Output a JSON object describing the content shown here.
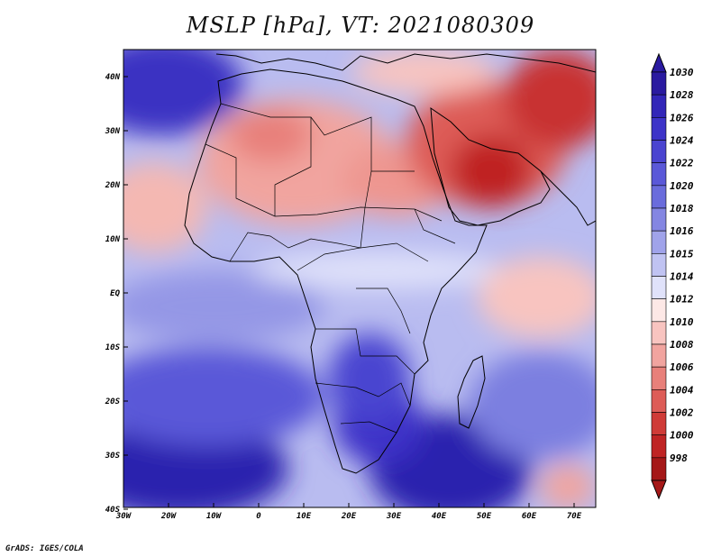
{
  "title": "MSLP [hPa], VT: 2021080309",
  "credit": "GrADS: IGES/COLA",
  "axes": {
    "lon_ticks": [
      "30W",
      "20W",
      "10W",
      "0",
      "10E",
      "20E",
      "30E",
      "40E",
      "50E",
      "60E",
      "70E"
    ],
    "lat_ticks": [
      "40N",
      "30N",
      "20N",
      "10N",
      "EQ",
      "10S",
      "20S",
      "30S",
      "40S"
    ]
  },
  "colorbar": {
    "labels": [
      "1030",
      "1028",
      "1026",
      "1024",
      "1022",
      "1020",
      "1018",
      "1016",
      "1015",
      "1014",
      "1012",
      "1010",
      "1008",
      "1006",
      "1004",
      "1002",
      "1000",
      "998"
    ],
    "colors": [
      "#2a1aa0",
      "#3226b8",
      "#3d33c8",
      "#4a44d0",
      "#5a58d8",
      "#6a6cdc",
      "#8486e2",
      "#a0a3ea",
      "#c0c3f2",
      "#e0e2fa",
      "#fde8e6",
      "#f8c4c0",
      "#f1a49f",
      "#e8807a",
      "#dd5c57",
      "#cf3b37",
      "#bf2424",
      "#a51818"
    ]
  },
  "colors": {
    "ocean_high": "#3226b8",
    "land_low": "#bf2424",
    "neutral": "#ffffff"
  }
}
